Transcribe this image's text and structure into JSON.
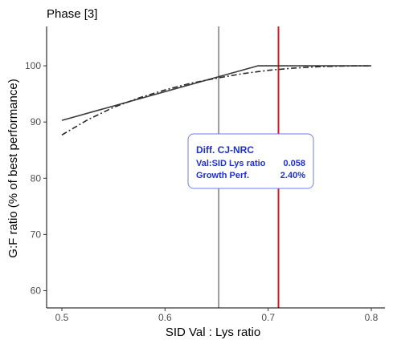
{
  "chart_data": {
    "type": "line",
    "title": "Phase [3]",
    "xlabel": "SID Val : Lys ratio",
    "ylabel": "G:F ratio (% of best performance)",
    "xlim": [
      0.5,
      0.8
    ],
    "ylim": [
      58.5,
      107
    ],
    "x_ticks": [
      0.5,
      0.6,
      0.7,
      0.8
    ],
    "x_tick_labels": [
      "0.5",
      "0.6",
      "0.7",
      "0.8"
    ],
    "y_ticks": [
      60,
      70,
      80,
      90,
      100
    ],
    "y_tick_labels": [
      "60",
      "70",
      "80",
      "90",
      "100"
    ],
    "grid": false,
    "series": [
      {
        "style": "solid",
        "color": "#3a3a3a",
        "x": [
          0.5,
          0.69,
          0.8
        ],
        "y": [
          90.3,
          100.0,
          100.0
        ]
      },
      {
        "style": "dashdot",
        "color": "#2a2a2a",
        "x": [
          0.5,
          0.525,
          0.55,
          0.575,
          0.6,
          0.625,
          0.65,
          0.675,
          0.7,
          0.725,
          0.75,
          0.775,
          0.8
        ],
        "y": [
          87.7,
          90.4,
          92.6,
          94.3,
          95.7,
          96.9,
          97.8,
          98.6,
          99.2,
          99.6,
          99.85,
          99.97,
          100.0
        ]
      }
    ],
    "vlines": [
      {
        "x": 0.652,
        "color": "#3a3a3a",
        "width": 1
      },
      {
        "x": 0.71,
        "color": "#e0141c",
        "width": 2
      }
    ],
    "annotation": {
      "title": "Diff. CJ-NRC",
      "rows": [
        {
          "label": "Val:SID Lys ratio",
          "value": "0.058"
        },
        {
          "label": "Growth Perf.",
          "value": "2.40%"
        }
      ],
      "text_color": "#1f2fd0",
      "border_color": "#6f7fe6"
    }
  }
}
